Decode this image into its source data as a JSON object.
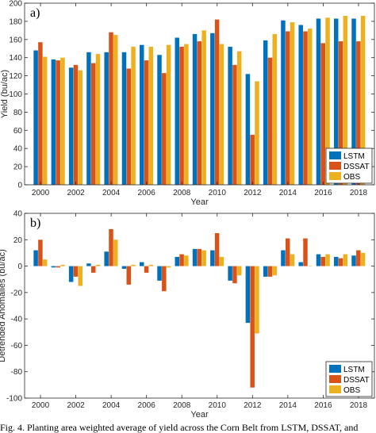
{
  "chart_data": [
    {
      "type": "bar",
      "panel_label": "a)",
      "xlabel": "Year",
      "ylabel": "Yield (bu/ac)",
      "ylim": [
        0,
        200
      ],
      "yticks": [
        0,
        20,
        40,
        60,
        80,
        100,
        120,
        140,
        160,
        180,
        200
      ],
      "xticks": [
        "2000",
        "2002",
        "2004",
        "2006",
        "2008",
        "2010",
        "2012",
        "2014",
        "2016",
        "2018"
      ],
      "categories": [
        "2000",
        "2001",
        "2002",
        "2003",
        "2004",
        "2005",
        "2006",
        "2007",
        "2008",
        "2009",
        "2010",
        "2011",
        "2012",
        "2013",
        "2014",
        "2015",
        "2016",
        "2017",
        "2018"
      ],
      "legend_position": "bottom-right",
      "grid": false,
      "series": [
        {
          "name": "LSTM",
          "color": "#0072BD",
          "values": [
            148,
            138,
            129,
            146,
            146,
            146,
            154,
            143,
            162,
            166,
            167,
            152,
            122,
            159,
            181,
            176,
            183,
            183,
            183
          ]
        },
        {
          "name": "DSSAT",
          "color": "#D95319",
          "values": [
            157,
            137,
            132,
            134,
            168,
            128,
            137,
            123,
            152,
            158,
            182,
            132,
            55,
            140,
            169,
            169,
            156,
            158,
            158
          ]
        },
        {
          "name": "OBS",
          "color": "#EDB120",
          "values": [
            141,
            140,
            126,
            144,
            165,
            152,
            152,
            154,
            155,
            170,
            155,
            147,
            114,
            166,
            179,
            172,
            184,
            186,
            186
          ]
        }
      ]
    },
    {
      "type": "bar",
      "panel_label": "b)",
      "xlabel": "Year",
      "ylabel": "Detrended Anomalies (bu/ac)",
      "ylim": [
        -100,
        40
      ],
      "yticks": [
        -100,
        -80,
        -60,
        -40,
        -20,
        0,
        20,
        40
      ],
      "xticks": [
        "2000",
        "2002",
        "2004",
        "2006",
        "2008",
        "2010",
        "2012",
        "2014",
        "2016",
        "2018"
      ],
      "categories": [
        "2000",
        "2001",
        "2002",
        "2003",
        "2004",
        "2005",
        "2006",
        "2007",
        "2008",
        "2009",
        "2010",
        "2011",
        "2012",
        "2013",
        "2014",
        "2015",
        "2016",
        "2017",
        "2018"
      ],
      "legend_position": "bottom-right",
      "grid": false,
      "series": [
        {
          "name": "LSTM",
          "color": "#0072BD",
          "values": [
            12,
            -1,
            -12,
            2,
            11,
            -2,
            3,
            -11,
            7,
            13,
            12,
            -11,
            -43,
            -8,
            12,
            3,
            9,
            7,
            8
          ]
        },
        {
          "name": "DSSAT",
          "color": "#D95319",
          "values": [
            20,
            -1,
            -8,
            -5,
            28,
            -14,
            -5,
            -19,
            9,
            13,
            25,
            -13,
            -92,
            -8,
            21,
            21,
            7,
            6,
            12
          ]
        },
        {
          "name": "OBS",
          "color": "#EDB120",
          "values": [
            5,
            1,
            -15,
            1,
            20,
            1,
            1,
            -1,
            8,
            12,
            7,
            -7,
            -51,
            -7,
            9,
            0,
            9,
            9,
            10
          ]
        }
      ]
    }
  ],
  "caption": "Fig. 4. Planting area weighted average of yield across the Corn Belt from LSTM, DSSAT, and"
}
